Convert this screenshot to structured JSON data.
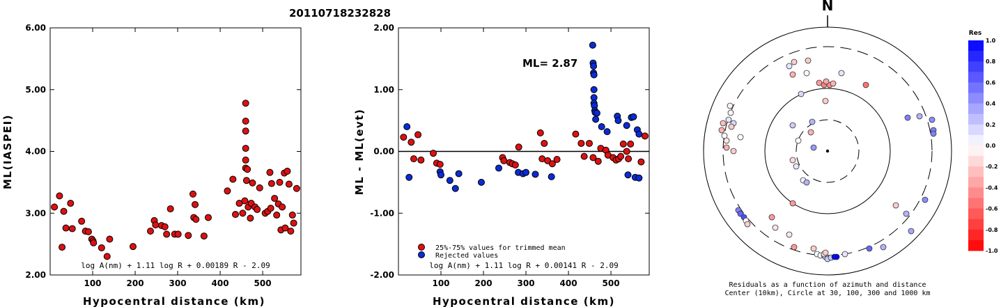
{
  "title": "20110718232828",
  "colors": {
    "accepted": "#dd1111",
    "rejected": "#0a2bd6"
  },
  "chart_data": [
    {
      "type": "scatter",
      "ylabel": "ML(IASPEI)",
      "xlabel": "Hypocentral distance (km)",
      "xlim": [
        0,
        590
      ],
      "ylim": [
        2.0,
        6.0
      ],
      "xticks": [
        "100",
        "200",
        "300",
        "400",
        "500"
      ],
      "yticks": [
        "2.00",
        "3.00",
        "4.00",
        "5.00",
        "6.00"
      ],
      "formula": "log A(nm) + 1.11 log R + 0.00189 R - 2.09",
      "points": [
        [
          10,
          3.1
        ],
        [
          22,
          3.28
        ],
        [
          28,
          2.45
        ],
        [
          32,
          3.03
        ],
        [
          37,
          2.76
        ],
        [
          48,
          3.16
        ],
        [
          52,
          2.75
        ],
        [
          74,
          2.87
        ],
        [
          83,
          2.71
        ],
        [
          90,
          2.7
        ],
        [
          98,
          2.58
        ],
        [
          101,
          2.55
        ],
        [
          102,
          2.52
        ],
        [
          121,
          2.44
        ],
        [
          134,
          2.3
        ],
        [
          140,
          2.58
        ],
        [
          195,
          2.46
        ],
        [
          236,
          2.71
        ],
        [
          245,
          2.88
        ],
        [
          248,
          2.81
        ],
        [
          262,
          2.8
        ],
        [
          270,
          2.78
        ],
        [
          274,
          2.66
        ],
        [
          283,
          3.07
        ],
        [
          293,
          2.66
        ],
        [
          301,
          2.66
        ],
        [
          325,
          2.64
        ],
        [
          336,
          3.31
        ],
        [
          338,
          2.93
        ],
        [
          341,
          3.14
        ],
        [
          343,
          2.9
        ],
        [
          362,
          2.63
        ],
        [
          372,
          2.93
        ],
        [
          417,
          3.36
        ],
        [
          430,
          3.55
        ],
        [
          436,
          2.98
        ],
        [
          445,
          3.16
        ],
        [
          453,
          3.0
        ],
        [
          458,
          3.2
        ],
        [
          460,
          3.73
        ],
        [
          460,
          3.86
        ],
        [
          460,
          4.05
        ],
        [
          460,
          4.33
        ],
        [
          460,
          4.49
        ],
        [
          460,
          4.78
        ],
        [
          462,
          3.53
        ],
        [
          464,
          3.71
        ],
        [
          466,
          3.1
        ],
        [
          471,
          2.92
        ],
        [
          473,
          3.16
        ],
        [
          476,
          3.49
        ],
        [
          482,
          3.1
        ],
        [
          487,
          3.06
        ],
        [
          493,
          3.41
        ],
        [
          506,
          3.0
        ],
        [
          512,
          3.03
        ],
        [
          517,
          3.66
        ],
        [
          519,
          3.08
        ],
        [
          521,
          3.48
        ],
        [
          528,
          3.24
        ],
        [
          533,
          2.97
        ],
        [
          537,
          3.15
        ],
        [
          540,
          3.5
        ],
        [
          543,
          2.73
        ],
        [
          546,
          3.1
        ],
        [
          551,
          3.65
        ],
        [
          553,
          2.76
        ],
        [
          558,
          3.68
        ],
        [
          562,
          3.47
        ],
        [
          566,
          2.71
        ],
        [
          570,
          2.97
        ],
        [
          573,
          2.84
        ],
        [
          580,
          3.4
        ]
      ]
    },
    {
      "type": "scatter",
      "ylabel": "ML - ML(evt)",
      "xlabel": "Hypocentral distance (km)",
      "xlim": [
        0,
        590
      ],
      "ylim": [
        -2.0,
        2.0
      ],
      "xticks": [
        "100",
        "200",
        "300",
        "400",
        "500"
      ],
      "yticks": [
        "-2.00",
        "-1.00",
        "0.00",
        "1.00",
        "2.00"
      ],
      "annotation": "ML= 2.87",
      "legend": [
        "25%-75% values for trimmed mean",
        "Rejected values"
      ],
      "formula": "log A(nm) + 1.11 log R + 0.00141 R - 2.09",
      "accepted": [
        [
          12,
          0.23
        ],
        [
          30,
          0.15
        ],
        [
          36,
          -0.12
        ],
        [
          46,
          0.27
        ],
        [
          53,
          -0.14
        ],
        [
          82,
          -0.03
        ],
        [
          90,
          -0.19
        ],
        [
          98,
          -0.21
        ],
        [
          245,
          -0.1
        ],
        [
          248,
          -0.15
        ],
        [
          262,
          -0.18
        ],
        [
          268,
          -0.2
        ],
        [
          275,
          -0.22
        ],
        [
          283,
          0.07
        ],
        [
          334,
          0.3
        ],
        [
          338,
          -0.12
        ],
        [
          343,
          0.13
        ],
        [
          351,
          -0.15
        ],
        [
          362,
          -0.2
        ],
        [
          373,
          -0.13
        ],
        [
          417,
          0.28
        ],
        [
          430,
          0.13
        ],
        [
          437,
          -0.08
        ],
        [
          449,
          0.13
        ],
        [
          458,
          -0.1
        ],
        [
          470,
          -0.16
        ],
        [
          476,
          0.05
        ],
        [
          488,
          0.02
        ],
        [
          493,
          -0.06
        ],
        [
          505,
          -0.1
        ],
        [
          512,
          -0.14
        ],
        [
          518,
          -0.12
        ],
        [
          523,
          -0.08
        ],
        [
          529,
          0.12
        ],
        [
          537,
          0.0
        ],
        [
          541,
          -0.12
        ],
        [
          546,
          0.12
        ],
        [
          571,
          -0.17
        ],
        [
          580,
          0.25
        ]
      ],
      "rejected": [
        [
          20,
          0.4
        ],
        [
          25,
          -0.42
        ],
        [
          98,
          -0.33
        ],
        [
          100,
          -0.38
        ],
        [
          121,
          -0.47
        ],
        [
          134,
          -0.6
        ],
        [
          142,
          -0.36
        ],
        [
          195,
          -0.5
        ],
        [
          236,
          -0.27
        ],
        [
          282,
          -0.34
        ],
        [
          293,
          -0.36
        ],
        [
          300,
          -0.34
        ],
        [
          322,
          -0.37
        ],
        [
          360,
          -0.41
        ],
        [
          457,
          1.72
        ],
        [
          458,
          1.43
        ],
        [
          459,
          1.38
        ],
        [
          459,
          1.27
        ],
        [
          460,
          1.24
        ],
        [
          460,
          1.0
        ],
        [
          460,
          0.87
        ],
        [
          460,
          0.78
        ],
        [
          461,
          0.74
        ],
        [
          462,
          0.66
        ],
        [
          463,
          0.63
        ],
        [
          464,
          0.52
        ],
        [
          467,
          0.62
        ],
        [
          478,
          0.4
        ],
        [
          491,
          0.32
        ],
        [
          515,
          0.57
        ],
        [
          517,
          0.5
        ],
        [
          537,
          0.42
        ],
        [
          540,
          -0.38
        ],
        [
          548,
          0.55
        ],
        [
          553,
          0.56
        ],
        [
          557,
          -0.42
        ],
        [
          562,
          0.35
        ],
        [
          566,
          -0.43
        ],
        [
          566,
          0.28
        ]
      ]
    },
    {
      "type": "scatter",
      "subtype": "polar",
      "north_label": "N",
      "caption_lines": [
        "Residuals as a function of azimuth and distance",
        "Center (10km), Circle at 30, 100, 300 and 1000 km"
      ],
      "colorbar": {
        "title": "Res",
        "ticks": [
          "1.0",
          "0.8",
          "0.6",
          "0.4",
          "0.2",
          "0.0",
          "-0.2",
          "-0.4",
          "-0.6",
          "-0.8",
          "-1.0"
        ]
      },
      "points": [
        [
          -55,
          -122,
          0.1
        ],
        [
          -50,
          -110,
          -0.3
        ],
        [
          -48,
          -128,
          -0.2
        ],
        [
          -38,
          -82,
          0.15
        ],
        [
          -30,
          -112,
          0.0
        ],
        [
          -28,
          -130,
          -0.2
        ],
        [
          -12,
          -98,
          -0.4
        ],
        [
          -5,
          -95,
          -0.5
        ],
        [
          3,
          -95,
          -0.45
        ],
        [
          8,
          -97,
          -0.3
        ],
        [
          20,
          -112,
          0.1
        ],
        [
          -2,
          -100,
          -0.35
        ],
        [
          -3,
          -72,
          -0.2
        ],
        [
          -24,
          -27,
          -0.3
        ],
        [
          -22,
          -42,
          0.3
        ],
        [
          -20,
          -5,
          0.4
        ],
        [
          -50,
          13,
          -0.15
        ],
        [
          -45,
          22,
          0.1
        ],
        [
          -35,
          42,
          0.05
        ],
        [
          -30,
          45,
          0.3
        ],
        [
          -42,
          -15,
          0.0
        ],
        [
          -50,
          -37,
          0.2
        ],
        [
          -142,
          -45,
          0.1
        ],
        [
          -139,
          -55,
          -0.05
        ],
        [
          -140,
          -65,
          -0.05
        ],
        [
          -135,
          -40,
          0.15
        ],
        [
          -138,
          -35,
          -0.2
        ],
        [
          -150,
          -40,
          -0.25
        ],
        [
          -152,
          -30,
          -0.3
        ],
        [
          -148,
          -22,
          0.0
        ],
        [
          -145,
          -15,
          -0.1
        ],
        [
          -145,
          -5,
          -0.3
        ],
        [
          -135,
          0,
          -0.2
        ],
        [
          -125,
          -20,
          0.0
        ],
        [
          -128,
          85,
          0.5
        ],
        [
          -125,
          90,
          0.6
        ],
        [
          -120,
          95,
          0.7
        ],
        [
          -117,
          100,
          0.0
        ],
        [
          -115,
          105,
          -0.2
        ],
        [
          -80,
          95,
          -0.4
        ],
        [
          -75,
          110,
          -0.1
        ],
        [
          -55,
          120,
          -0.1
        ],
        [
          -48,
          138,
          -0.4
        ],
        [
          -20,
          140,
          -0.2
        ],
        [
          -15,
          148,
          0.0
        ],
        [
          -10,
          150,
          0.0
        ],
        [
          -5,
          150,
          0.0
        ],
        [
          -3,
          152,
          0.2
        ],
        [
          0,
          155,
          0.2
        ],
        [
          5,
          153,
          0.2
        ],
        [
          10,
          152,
          1.0
        ],
        [
          13,
          152,
          1.0
        ],
        [
          -5,
          148,
          0.0
        ],
        [
          -3,
          146,
          -0.2
        ],
        [
          25,
          148,
          0.1
        ],
        [
          60,
          140,
          0.6
        ],
        [
          80,
          138,
          0.3
        ],
        [
          120,
          115,
          0.35
        ],
        [
          140,
          70,
          0.45
        ],
        [
          98,
          78,
          -0.2
        ],
        [
          113,
          90,
          0.3
        ],
        [
          150,
          -45,
          0.45
        ],
        [
          152,
          -30,
          0.5
        ],
        [
          152,
          -25,
          0.5
        ],
        [
          115,
          -48,
          0.5
        ],
        [
          132,
          -50,
          0.3
        ],
        [
          55,
          -95,
          -0.55
        ],
        [
          -50,
          75,
          -0.4
        ]
      ]
    }
  ]
}
